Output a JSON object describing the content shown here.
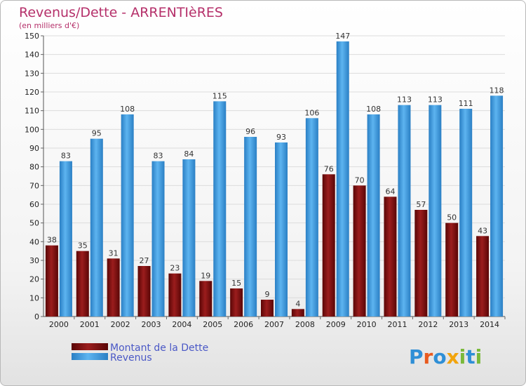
{
  "chart_data": {
    "type": "bar",
    "title": "Revenus/Dette - ARRENTIèRES",
    "subtitle": "(en milliers d'€)",
    "xlabel": "",
    "ylabel": "",
    "categories": [
      "2000",
      "2001",
      "2002",
      "2003",
      "2004",
      "2005",
      "2006",
      "2007",
      "2008",
      "2009",
      "2010",
      "2011",
      "2012",
      "2013",
      "2014"
    ],
    "series": [
      {
        "name": "Montant de la Dette",
        "color": "#7a0e0e",
        "values": [
          38,
          35,
          31,
          27,
          23,
          19,
          15,
          9,
          4,
          76,
          70,
          64,
          57,
          50,
          43
        ]
      },
      {
        "name": "Revenus",
        "color": "#3d98dd",
        "values": [
          83,
          95,
          108,
          83,
          84,
          115,
          96,
          93,
          106,
          147,
          108,
          113,
          113,
          111,
          118
        ]
      }
    ],
    "ylim": [
      0,
      150
    ],
    "yticks": [
      0,
      10,
      20,
      30,
      40,
      50,
      60,
      70,
      80,
      90,
      100,
      110,
      120,
      130,
      140,
      150
    ],
    "grid": true,
    "legend_position": "bottom-left"
  },
  "logo": {
    "text": "Proxiti",
    "letters": [
      "P",
      "r",
      "o",
      "x",
      "i",
      "t",
      "i"
    ]
  }
}
